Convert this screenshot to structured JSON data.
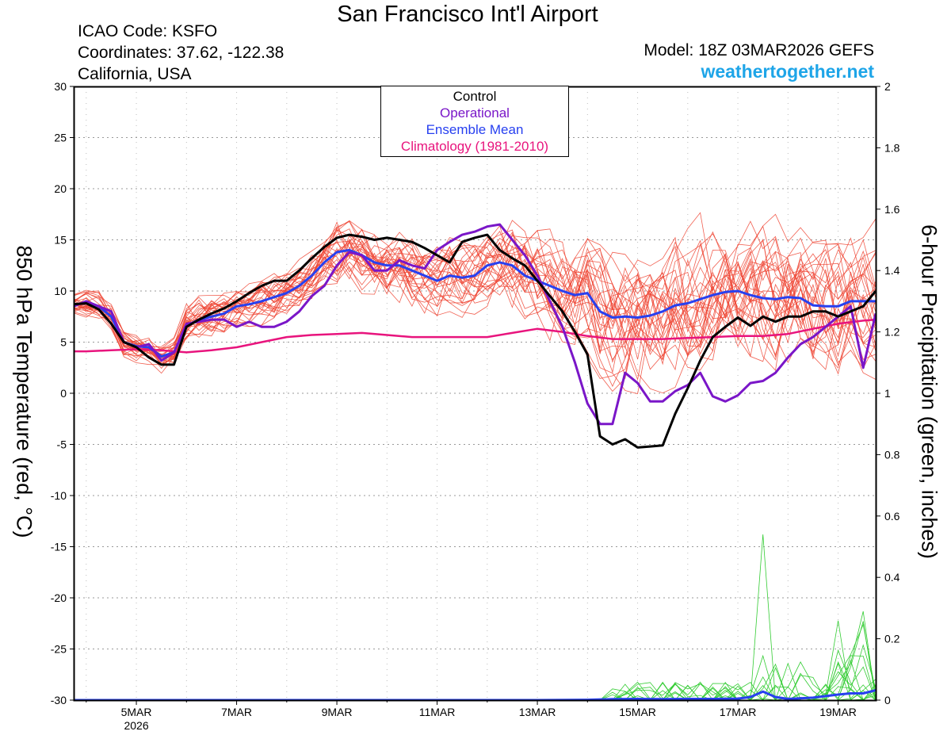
{
  "header": {
    "title": "San Francisco Int'l Airport",
    "icao": "ICAO Code: KSFO",
    "coordinates": "Coordinates: 37.62, -122.38",
    "region": "California, USA",
    "model": "Model: 18Z 03MAR2026 GEFS",
    "site": "weathertogether.net"
  },
  "legend": {
    "control": "Control",
    "operational": "Operational",
    "ensemble_mean": "Ensemble Mean",
    "climatology": "Climatology (1981-2010)"
  },
  "colors": {
    "control": "#000000",
    "operational": "#7a16c8",
    "ensemble_mean": "#2740f0",
    "climatology": "#e8147d",
    "members": "#ee4433",
    "precip": "#33cc33",
    "site": "#1ea5e8"
  },
  "chart_data": {
    "type": "line",
    "title": "San Francisco Int'l Airport",
    "ylabel": "850 hPa Temperature (red, °C)",
    "y2label": "6-hour Precipitation (green, inches)",
    "ylim": [
      -30,
      30
    ],
    "y2lim": [
      0,
      2
    ],
    "yticks": [
      -30,
      -25,
      -20,
      -15,
      -10,
      -5,
      0,
      5,
      10,
      15,
      20,
      25,
      30
    ],
    "y2ticks": [
      0,
      0.2,
      0.4,
      0.6,
      0.8,
      1,
      1.2,
      1.4,
      1.6,
      1.8,
      2
    ],
    "xlim": [
      3.75,
      19.75
    ],
    "xtick_labels": [
      {
        "x": 5,
        "label": "5MAR",
        "sub": "2026"
      },
      {
        "x": 7,
        "label": "7MAR"
      },
      {
        "x": 9,
        "label": "9MAR"
      },
      {
        "x": 11,
        "label": "11MAR"
      },
      {
        "x": 13,
        "label": "13MAR"
      },
      {
        "x": 15,
        "label": "15MAR"
      },
      {
        "x": 17,
        "label": "17MAR"
      },
      {
        "x": 19,
        "label": "19MAR"
      }
    ],
    "grid": true,
    "legend_position": "top-center",
    "x_units": "day of March 2026",
    "series": [
      {
        "name": "Control",
        "axis": "left",
        "x": [
          3.75,
          4.0,
          4.25,
          4.5,
          4.75,
          5.0,
          5.25,
          5.5,
          5.75,
          6.0,
          6.25,
          6.5,
          6.75,
          7.0,
          7.25,
          7.5,
          7.75,
          8.0,
          8.25,
          8.5,
          8.75,
          9.0,
          9.25,
          9.5,
          9.75,
          10.0,
          10.25,
          10.5,
          10.75,
          11.0,
          11.25,
          11.5,
          11.75,
          12.0,
          12.25,
          12.5,
          12.75,
          13.0,
          13.25,
          13.5,
          13.75,
          14.0,
          14.25,
          14.5,
          14.75,
          15.0,
          15.25,
          15.5,
          15.75,
          16.0,
          16.25,
          16.5,
          16.75,
          17.0,
          17.25,
          17.5,
          17.75,
          18.0,
          18.25,
          18.5,
          18.75,
          19.0,
          19.25,
          19.5,
          19.75
        ],
        "y": [
          8.7,
          8.8,
          8.2,
          6.8,
          5.0,
          4.5,
          3.5,
          2.8,
          2.8,
          6.5,
          7.2,
          7.8,
          8.3,
          9.0,
          9.8,
          10.5,
          11.0,
          11.0,
          12.0,
          13.2,
          14.3,
          15.2,
          15.5,
          15.3,
          15.0,
          15.2,
          15.0,
          14.8,
          14.2,
          13.5,
          12.8,
          14.8,
          15.2,
          15.5,
          14.0,
          13.2,
          12.5,
          11.0,
          9.5,
          8.0,
          6.0,
          3.8,
          -4.2,
          -5.0,
          -4.5,
          -5.3,
          -5.2,
          -5.1,
          -2.0,
          0.5,
          3.2,
          5.5,
          6.5,
          7.4,
          6.6,
          7.5,
          7.0,
          7.5,
          7.5,
          8.0,
          8.0,
          7.5,
          8.0,
          8.5,
          10.0
        ]
      },
      {
        "name": "Operational",
        "axis": "left",
        "x": [
          3.75,
          4.0,
          4.25,
          4.5,
          4.75,
          5.0,
          5.25,
          5.5,
          5.75,
          6.0,
          6.25,
          6.5,
          6.75,
          7.0,
          7.25,
          7.5,
          7.75,
          8.0,
          8.25,
          8.5,
          8.75,
          9.0,
          9.25,
          9.5,
          9.75,
          10.0,
          10.25,
          10.5,
          10.75,
          11.0,
          11.25,
          11.5,
          11.75,
          12.0,
          12.25,
          12.5,
          12.75,
          13.0,
          13.25,
          13.5,
          13.75,
          14.0,
          14.25,
          14.5,
          14.75,
          15.0,
          15.25,
          15.5,
          15.75,
          16.0,
          16.25,
          16.5,
          16.75,
          17.0,
          17.25,
          17.5,
          17.75,
          18.0,
          18.25,
          18.5,
          18.75,
          19.0,
          19.25,
          19.5,
          19.75
        ],
        "y": [
          8.5,
          9.0,
          8.5,
          8.0,
          5.0,
          4.5,
          4.8,
          3.2,
          4.0,
          6.8,
          7.0,
          7.2,
          7.2,
          6.5,
          7.0,
          6.5,
          6.5,
          7.0,
          8.0,
          9.5,
          10.5,
          12.5,
          13.8,
          13.5,
          12.0,
          12.0,
          13.0,
          12.5,
          12.2,
          14.0,
          14.8,
          15.5,
          15.8,
          16.3,
          16.5,
          15.0,
          13.5,
          11.5,
          9.0,
          6.5,
          3.0,
          -1.0,
          -3.0,
          -3.0,
          2.0,
          1.0,
          -0.8,
          -0.8,
          0.2,
          0.8,
          2.0,
          -0.3,
          -0.8,
          -0.2,
          1.0,
          1.2,
          2.0,
          3.5,
          4.8,
          5.5,
          6.5,
          7.5,
          8.5,
          2.5,
          7.8
        ]
      },
      {
        "name": "Ensemble Mean",
        "axis": "left",
        "x": [
          3.75,
          4.0,
          4.25,
          4.5,
          4.75,
          5.0,
          5.25,
          5.5,
          5.75,
          6.0,
          6.25,
          6.5,
          6.75,
          7.0,
          7.25,
          7.5,
          7.75,
          8.0,
          8.25,
          8.5,
          8.75,
          9.0,
          9.25,
          9.5,
          9.75,
          10.0,
          10.25,
          10.5,
          10.75,
          11.0,
          11.25,
          11.5,
          11.75,
          12.0,
          12.25,
          12.5,
          12.75,
          13.0,
          13.25,
          13.5,
          13.75,
          14.0,
          14.25,
          14.5,
          14.75,
          15.0,
          15.25,
          15.5,
          15.75,
          16.0,
          16.25,
          16.5,
          16.75,
          17.0,
          17.25,
          17.5,
          17.75,
          18.0,
          18.25,
          18.5,
          18.75,
          19.0,
          19.25,
          19.5,
          19.75
        ],
        "y": [
          8.7,
          8.8,
          8.5,
          7.5,
          5.0,
          4.6,
          4.5,
          3.6,
          4.0,
          6.6,
          7.2,
          7.5,
          7.8,
          8.5,
          8.7,
          9.0,
          9.4,
          9.8,
          10.5,
          11.5,
          12.8,
          13.8,
          14.0,
          13.5,
          12.8,
          12.5,
          12.5,
          12.0,
          11.5,
          11.0,
          11.5,
          11.3,
          11.5,
          12.5,
          12.8,
          12.5,
          11.5,
          11.0,
          10.5,
          10.0,
          9.6,
          9.8,
          8.0,
          7.4,
          7.5,
          7.4,
          7.6,
          8.0,
          8.6,
          8.8,
          9.2,
          9.6,
          9.9,
          10.0,
          9.6,
          9.3,
          9.2,
          9.4,
          9.3,
          8.6,
          8.5,
          8.5,
          9.0,
          9.0,
          9.0
        ]
      },
      {
        "name": "Climatology (1981-2010)",
        "axis": "left",
        "x": [
          3.75,
          4.0,
          4.5,
          5.0,
          5.5,
          6.0,
          6.5,
          7.0,
          7.5,
          8.0,
          8.5,
          9.0,
          9.5,
          10.0,
          10.5,
          11.0,
          11.5,
          12.0,
          12.5,
          13.0,
          13.5,
          14.0,
          14.5,
          15.0,
          15.5,
          16.0,
          16.5,
          17.0,
          17.5,
          18.0,
          18.5,
          19.0,
          19.5,
          19.75
        ],
        "y": [
          4.1,
          4.1,
          4.2,
          4.3,
          4.2,
          4.0,
          4.2,
          4.5,
          5.0,
          5.5,
          5.7,
          5.8,
          5.9,
          5.7,
          5.5,
          5.5,
          5.5,
          5.5,
          5.9,
          6.3,
          6.0,
          5.6,
          5.3,
          5.3,
          5.3,
          5.4,
          5.5,
          5.6,
          5.6,
          5.8,
          6.3,
          6.8,
          7.1,
          7.2
        ]
      },
      {
        "name": "Ensemble Mean",
        "axis": "right",
        "x": [
          3.75,
          13.0,
          14.0,
          14.5,
          15.0,
          15.5,
          16.0,
          16.5,
          17.0,
          17.25,
          17.5,
          17.75,
          18.0,
          18.5,
          19.0,
          19.25,
          19.5,
          19.75
        ],
        "y": [
          0,
          0,
          0.001,
          0.003,
          0.004,
          0.003,
          0.004,
          0.004,
          0.005,
          0.01,
          0.028,
          0.01,
          0.004,
          0.008,
          0.018,
          0.022,
          0.022,
          0.032
        ]
      }
    ]
  }
}
